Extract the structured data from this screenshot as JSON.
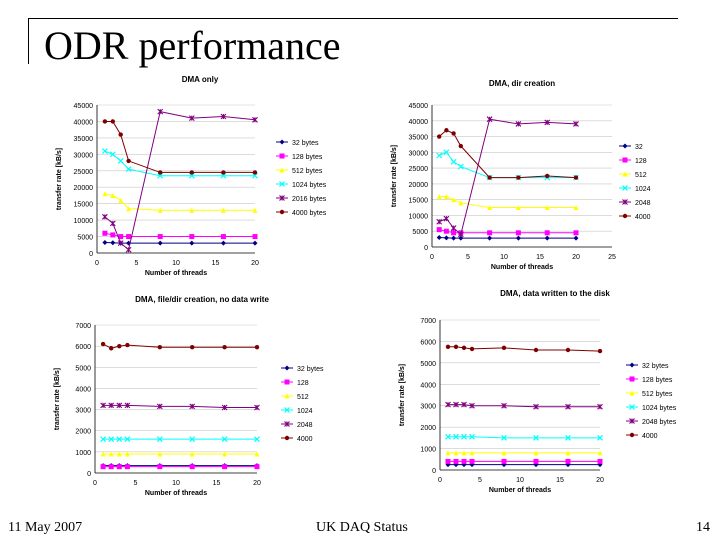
{
  "slide": {
    "title": "ODR performance",
    "footer_left": "11 May 2007",
    "footer_center": "UK DAQ Status",
    "footer_right": "14"
  },
  "chart_data": [
    {
      "type": "line",
      "title": "DMA only",
      "xlabel": "Number of threads",
      "ylabel": "transfer rate [kB/s]",
      "xlim": [
        0,
        20
      ],
      "ylim": [
        0,
        45000
      ],
      "xticks": [
        0,
        5,
        10,
        15,
        20
      ],
      "yticks": [
        0,
        5000,
        10000,
        15000,
        20000,
        25000,
        30000,
        35000,
        40000,
        45000
      ],
      "legend_position": "right",
      "series": [
        {
          "name": "32 bytes",
          "color": "#000080",
          "marker": "diamond",
          "x": [
            1,
            2,
            3,
            4,
            8,
            12,
            16,
            20
          ],
          "values": [
            3200,
            3100,
            3000,
            3000,
            3000,
            3000,
            3000,
            3000
          ]
        },
        {
          "name": "128 bytes",
          "color": "#ff00ff",
          "marker": "square",
          "x": [
            1,
            2,
            3,
            4,
            8,
            12,
            16,
            20
          ],
          "values": [
            6000,
            5500,
            5000,
            5000,
            5000,
            5000,
            5000,
            5000
          ]
        },
        {
          "name": "512 bytes",
          "color": "#ffff00",
          "marker": "triangle",
          "x": [
            1,
            2,
            3,
            4,
            8,
            12,
            16,
            20
          ],
          "values": [
            18000,
            17500,
            16000,
            13500,
            13000,
            13000,
            13000,
            13000
          ]
        },
        {
          "name": "1024 bytes",
          "color": "#00ffff",
          "marker": "x",
          "x": [
            1,
            2,
            3,
            4,
            8,
            12,
            16,
            20
          ],
          "values": [
            31000,
            30000,
            28000,
            25500,
            23500,
            23500,
            23500,
            23500
          ]
        },
        {
          "name": "2016 bytes",
          "color": "#800080",
          "marker": "star",
          "x": [
            1,
            2,
            3,
            4,
            8,
            12,
            16,
            20
          ],
          "values": [
            11000,
            9000,
            3000,
            1000,
            43000,
            41000,
            41500,
            40500
          ]
        },
        {
          "name": "4000 bytes",
          "color": "#800000",
          "marker": "circle",
          "x": [
            1,
            2,
            3,
            4,
            8,
            12,
            16,
            20
          ],
          "values": [
            40000,
            40000,
            36000,
            28000,
            24500,
            24500,
            24500,
            24500
          ]
        }
      ]
    },
    {
      "type": "line",
      "title": "DMA, dir creation",
      "xlabel": "Number of threads",
      "ylabel": "transfer rate [kB/s]",
      "xlim": [
        0,
        25
      ],
      "ylim": [
        0,
        45000
      ],
      "xticks": [
        0,
        5,
        10,
        15,
        20,
        25
      ],
      "yticks": [
        0,
        5000,
        10000,
        15000,
        20000,
        25000,
        30000,
        35000,
        40000,
        45000
      ],
      "legend_position": "right",
      "series": [
        {
          "name": "32",
          "color": "#000080",
          "marker": "diamond",
          "x": [
            1,
            2,
            3,
            4,
            8,
            12,
            16,
            20
          ],
          "values": [
            3000,
            2900,
            2800,
            2800,
            2800,
            2800,
            2800,
            2800
          ]
        },
        {
          "name": "128",
          "color": "#ff00ff",
          "marker": "square",
          "x": [
            1,
            2,
            3,
            4,
            8,
            12,
            16,
            20
          ],
          "values": [
            5500,
            5000,
            4500,
            4500,
            4500,
            4500,
            4500,
            4500
          ]
        },
        {
          "name": "512",
          "color": "#ffff00",
          "marker": "triangle",
          "x": [
            1,
            2,
            3,
            4,
            8,
            12,
            16,
            20
          ],
          "values": [
            16000,
            16000,
            15000,
            14000,
            12500,
            12500,
            12500,
            12500
          ]
        },
        {
          "name": "1024",
          "color": "#00ffff",
          "marker": "x",
          "x": [
            1,
            2,
            3,
            4,
            8,
            12,
            16,
            20
          ],
          "values": [
            29000,
            30000,
            27000,
            25500,
            22000,
            22000,
            22000,
            22000
          ]
        },
        {
          "name": "2048",
          "color": "#800080",
          "marker": "star",
          "x": [
            1,
            2,
            3,
            4,
            8,
            12,
            16,
            20
          ],
          "values": [
            8000,
            9000,
            6000,
            4000,
            40500,
            39000,
            39500,
            39000
          ]
        },
        {
          "name": "4000",
          "color": "#800000",
          "marker": "circle",
          "x": [
            1,
            2,
            3,
            4,
            8,
            12,
            16,
            20
          ],
          "values": [
            35000,
            37000,
            36000,
            32000,
            22000,
            22000,
            22500,
            22000
          ]
        }
      ]
    },
    {
      "type": "line",
      "title": "DMA, file/dir creation, no data write",
      "xlabel": "Number of threads",
      "ylabel": "transfer rate [kB/s]",
      "xlim": [
        0,
        20
      ],
      "ylim": [
        0,
        7000
      ],
      "xticks": [
        0,
        5,
        10,
        15,
        20
      ],
      "yticks": [
        0,
        1000,
        2000,
        3000,
        4000,
        5000,
        6000,
        7000
      ],
      "legend_position": "right",
      "series": [
        {
          "name": "32 bytes",
          "color": "#000080",
          "marker": "diamond",
          "x": [
            1,
            2,
            3,
            4,
            8,
            12,
            16,
            20
          ],
          "values": [
            350,
            350,
            350,
            350,
            350,
            350,
            350,
            350
          ]
        },
        {
          "name": "128",
          "color": "#ff00ff",
          "marker": "square",
          "x": [
            1,
            2,
            3,
            4,
            8,
            12,
            16,
            20
          ],
          "values": [
            300,
            300,
            300,
            300,
            300,
            300,
            300,
            300
          ]
        },
        {
          "name": "512",
          "color": "#ffff00",
          "marker": "triangle",
          "x": [
            1,
            2,
            3,
            4,
            8,
            12,
            16,
            20
          ],
          "values": [
            900,
            900,
            900,
            900,
            900,
            900,
            900,
            900
          ]
        },
        {
          "name": "1024",
          "color": "#00ffff",
          "marker": "x",
          "x": [
            1,
            2,
            3,
            4,
            8,
            12,
            16,
            20
          ],
          "values": [
            1600,
            1600,
            1600,
            1600,
            1600,
            1600,
            1600,
            1600
          ]
        },
        {
          "name": "2048",
          "color": "#800080",
          "marker": "star",
          "x": [
            1,
            2,
            3,
            4,
            8,
            12,
            16,
            20
          ],
          "values": [
            3200,
            3200,
            3200,
            3200,
            3150,
            3150,
            3100,
            3100
          ]
        },
        {
          "name": "4000",
          "color": "#800000",
          "marker": "circle",
          "x": [
            1,
            2,
            3,
            4,
            8,
            12,
            16,
            20
          ],
          "values": [
            6100,
            5900,
            6000,
            6050,
            5950,
            5950,
            5950,
            5950
          ]
        }
      ]
    },
    {
      "type": "line",
      "title": "DMA, data written to the disk",
      "xlabel": "Number of threads",
      "ylabel": "transfer rate [kB/s]",
      "xlim": [
        0,
        20
      ],
      "ylim": [
        0,
        7000
      ],
      "xticks": [
        0,
        5,
        10,
        15,
        20
      ],
      "yticks": [
        0,
        1000,
        2000,
        3000,
        4000,
        5000,
        6000,
        7000
      ],
      "legend_position": "right",
      "series": [
        {
          "name": "32 bytes",
          "color": "#000080",
          "marker": "diamond",
          "x": [
            1,
            2,
            3,
            4,
            8,
            12,
            16,
            20
          ],
          "values": [
            250,
            250,
            250,
            250,
            250,
            250,
            250,
            250
          ]
        },
        {
          "name": "128 bytes",
          "color": "#ff00ff",
          "marker": "square",
          "x": [
            1,
            2,
            3,
            4,
            8,
            12,
            16,
            20
          ],
          "values": [
            400,
            400,
            400,
            400,
            400,
            400,
            400,
            400
          ]
        },
        {
          "name": "512 bytes",
          "color": "#ffff00",
          "marker": "triangle",
          "x": [
            1,
            2,
            3,
            4,
            8,
            12,
            16,
            20
          ],
          "values": [
            800,
            800,
            800,
            800,
            800,
            800,
            800,
            800
          ]
        },
        {
          "name": "1024 bytes",
          "color": "#00ffff",
          "marker": "x",
          "x": [
            1,
            2,
            3,
            4,
            8,
            12,
            16,
            20
          ],
          "values": [
            1550,
            1550,
            1550,
            1550,
            1500,
            1500,
            1500,
            1500
          ]
        },
        {
          "name": "2048 bytes",
          "color": "#800080",
          "marker": "star",
          "x": [
            1,
            2,
            3,
            4,
            8,
            12,
            16,
            20
          ],
          "values": [
            3050,
            3050,
            3050,
            3000,
            3000,
            2950,
            2950,
            2950
          ]
        },
        {
          "name": "4000",
          "color": "#800000",
          "marker": "circle",
          "x": [
            1,
            2,
            3,
            4,
            8,
            12,
            16,
            20
          ],
          "values": [
            5750,
            5750,
            5700,
            5650,
            5700,
            5600,
            5600,
            5550
          ]
        }
      ]
    }
  ]
}
